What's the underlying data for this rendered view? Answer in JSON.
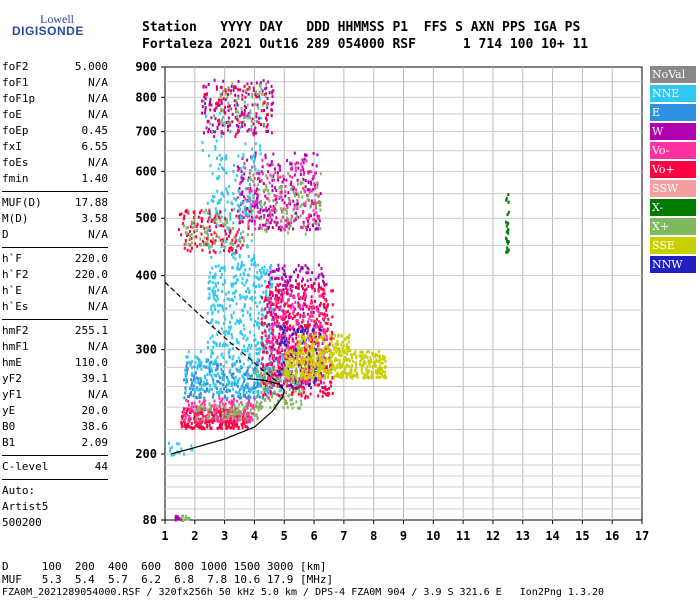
{
  "logo": {
    "top": "Lowell",
    "bottom": "DIGISONDE"
  },
  "header": {
    "line1": "Station   YYYY DAY   DDD HHMMSS P1  FFS S AXN PPS IGA PS",
    "line2": "Fortaleza 2021 Out16 289 054000 RSF      1 714 100 10+ 11"
  },
  "params_group1": [
    {
      "name": "foF2",
      "value": "5.000"
    },
    {
      "name": "foF1",
      "value": "N/A"
    },
    {
      "name": "foF1p",
      "value": "N/A"
    },
    {
      "name": "foE",
      "value": "N/A"
    },
    {
      "name": "foEp",
      "value": "0.45"
    },
    {
      "name": "fxI",
      "value": "6.55"
    },
    {
      "name": "foEs",
      "value": "N/A"
    },
    {
      "name": "fmin",
      "value": "1.40"
    }
  ],
  "params_group2": [
    {
      "name": "MUF(D)",
      "value": "17.88"
    },
    {
      "name": "M(D)",
      "value": "3.58"
    },
    {
      "name": "D",
      "value": "N/A"
    }
  ],
  "params_group3": [
    {
      "name": "h`F",
      "value": "220.0"
    },
    {
      "name": "h`F2",
      "value": "220.0"
    },
    {
      "name": "h`E",
      "value": "N/A"
    },
    {
      "name": "h`Es",
      "value": "N/A"
    }
  ],
  "params_group4": [
    {
      "name": "hmF2",
      "value": "255.1"
    },
    {
      "name": "hmF1",
      "value": "N/A"
    },
    {
      "name": "hmE",
      "value": "110.0"
    },
    {
      "name": "yF2",
      "value": "39.1"
    },
    {
      "name": "yF1",
      "value": "N/A"
    },
    {
      "name": "yE",
      "value": "20.0"
    },
    {
      "name": "B0",
      "value": "38.6"
    },
    {
      "name": "B1",
      "value": "2.09"
    }
  ],
  "params_group5": [
    {
      "name": "C-level",
      "value": "44"
    }
  ],
  "auto": {
    "line1": "Auto:",
    "line2": "Artist5",
    "line3": "500200"
  },
  "legend": [
    {
      "label": "NoVal",
      "color": "#888888"
    },
    {
      "label": "NNE",
      "color": "#30c8f0"
    },
    {
      "label": "E",
      "color": "#2f8fe0"
    },
    {
      "label": "W",
      "color": "#b000b0"
    },
    {
      "label": "Vo-",
      "color": "#ff30a0"
    },
    {
      "label": "Vo+",
      "color": "#ff0040"
    },
    {
      "label": "SSW",
      "color": "#f4a0a0"
    },
    {
      "label": "X-",
      "color": "#007a00"
    },
    {
      "label": "X+",
      "color": "#80b860"
    },
    {
      "label": "SSE",
      "color": "#c8d000"
    },
    {
      "label": "NNW",
      "color": "#2020c0"
    }
  ],
  "footer": {
    "d_line": "D     100  200  400  600  800 1000 1500 3000 [km]",
    "muf_line": "MUF   5.3  5.4  5.7  6.2  6.8  7.8 10.6 17.9 [MHz]",
    "info_line": "FZA0M_2021289054000.RSF / 320fx256h 50 kHz 5.0 km / DPS-4 FZA0M 904 / 3.9 S 321.6 E   Ion2Png 1.3.20"
  },
  "chart_data": {
    "type": "scatter",
    "xlim": [
      1,
      17
    ],
    "ylim": [
      80,
      900
    ],
    "x_ticks": [
      "1",
      "2",
      "3",
      "4",
      "5",
      "6",
      "7",
      "8",
      "9",
      "10",
      "11",
      "12",
      "13",
      "14",
      "15",
      "16",
      "17"
    ],
    "y_ticks": [
      "80",
      "200",
      "300",
      "400",
      "500",
      "600",
      "700",
      "800",
      "900"
    ],
    "y_tick_values": [
      80,
      200,
      300,
      400,
      500,
      600,
      700,
      800,
      900
    ],
    "grid": true,
    "log_y_from_200": true,
    "clusters": [
      {
        "color": "#ff0040",
        "x": [
          1.5,
          3.8
        ],
        "y": [
          222,
          240
        ],
        "n": 260
      },
      {
        "color": "#ff30a0",
        "x": [
          1.6,
          4.0
        ],
        "y": [
          228,
          250
        ],
        "n": 160
      },
      {
        "color": "#80b860",
        "x": [
          2.0,
          4.2
        ],
        "y": [
          230,
          245
        ],
        "n": 80
      },
      {
        "color": "#2f8fe0",
        "x": [
          1.6,
          4.6
        ],
        "y": [
          250,
          290
        ],
        "n": 240
      },
      {
        "color": "#30c8f0",
        "x": [
          1.6,
          5.0
        ],
        "y": [
          255,
          300
        ],
        "n": 220
      },
      {
        "color": "#30c8f0",
        "x": [
          2.4,
          4.6
        ],
        "y": [
          300,
          420
        ],
        "n": 330
      },
      {
        "color": "#30c8f0",
        "x": [
          2.4,
          4.0
        ],
        "y": [
          420,
          560
        ],
        "n": 90
      },
      {
        "color": "#b000b0",
        "x": [
          4.4,
          6.4
        ],
        "y": [
          260,
          420
        ],
        "n": 320
      },
      {
        "color": "#ff0040",
        "x": [
          4.2,
          6.6
        ],
        "y": [
          250,
          390
        ],
        "n": 420
      },
      {
        "color": "#ff30a0",
        "x": [
          4.4,
          6.4
        ],
        "y": [
          265,
          380
        ],
        "n": 240
      },
      {
        "color": "#2020c0",
        "x": [
          4.8,
          6.2
        ],
        "y": [
          260,
          330
        ],
        "n": 90
      },
      {
        "color": "#c8d000",
        "x": [
          5.0,
          8.4
        ],
        "y": [
          270,
          300
        ],
        "n": 460
      },
      {
        "color": "#c8d000",
        "x": [
          5.4,
          7.2
        ],
        "y": [
          300,
          320
        ],
        "n": 90
      },
      {
        "color": "#80b860",
        "x": [
          4.0,
          5.6
        ],
        "y": [
          240,
          280
        ],
        "n": 100
      },
      {
        "color": "#ff0040",
        "x": [
          1.4,
          3.6
        ],
        "y": [
          440,
          520
        ],
        "n": 120
      },
      {
        "color": "#80b860",
        "x": [
          1.6,
          3.8
        ],
        "y": [
          450,
          520
        ],
        "n": 70
      },
      {
        "color": "#b000b0",
        "x": [
          3.4,
          6.2
        ],
        "y": [
          480,
          650
        ],
        "n": 240
      },
      {
        "color": "#ff30a0",
        "x": [
          3.4,
          6.2
        ],
        "y": [
          480,
          630
        ],
        "n": 160
      },
      {
        "color": "#80b860",
        "x": [
          3.8,
          6.2
        ],
        "y": [
          470,
          600
        ],
        "n": 90
      },
      {
        "color": "#30c8f0",
        "x": [
          2.4,
          4.2
        ],
        "y": [
          500,
          640
        ],
        "n": 70
      },
      {
        "color": "#b000b0",
        "x": [
          2.2,
          4.6
        ],
        "y": [
          700,
          860
        ],
        "n": 130
      },
      {
        "color": "#ff0040",
        "x": [
          2.2,
          4.6
        ],
        "y": [
          690,
          840
        ],
        "n": 90
      },
      {
        "color": "#80b860",
        "x": [
          2.8,
          4.4
        ],
        "y": [
          720,
          850
        ],
        "n": 50
      },
      {
        "color": "#30c8f0",
        "x": [
          2.2,
          4.2
        ],
        "y": [
          640,
          800
        ],
        "n": 40
      },
      {
        "color": "#b000b0",
        "x": [
          1.3,
          1.6
        ],
        "y": [
          82,
          90
        ],
        "n": 12
      },
      {
        "color": "#80b860",
        "x": [
          1.5,
          1.8
        ],
        "y": [
          82,
          90
        ],
        "n": 10
      },
      {
        "color": "#007a00",
        "x": [
          12.4,
          12.5
        ],
        "y": [
          440,
          560
        ],
        "n": 26
      },
      {
        "color": "#30c8f0",
        "x": [
          1.1,
          1.9
        ],
        "y": [
          200,
          210
        ],
        "n": 16
      }
    ],
    "profile_solid": [
      [
        1.2,
        200
      ],
      [
        2.0,
        205
      ],
      [
        3.0,
        212
      ],
      [
        4.0,
        222
      ],
      [
        4.6,
        236
      ],
      [
        4.95,
        250
      ],
      [
        5.0,
        256
      ],
      [
        4.85,
        262
      ],
      [
        4.4,
        266
      ],
      [
        3.8,
        268
      ]
    ],
    "profile_dashed": [
      [
        1.0,
        390
      ],
      [
        1.6,
        365
      ],
      [
        2.4,
        335
      ],
      [
        3.2,
        308
      ],
      [
        3.9,
        288
      ],
      [
        4.4,
        274
      ],
      [
        4.8,
        264
      ],
      [
        5.0,
        256
      ]
    ]
  }
}
